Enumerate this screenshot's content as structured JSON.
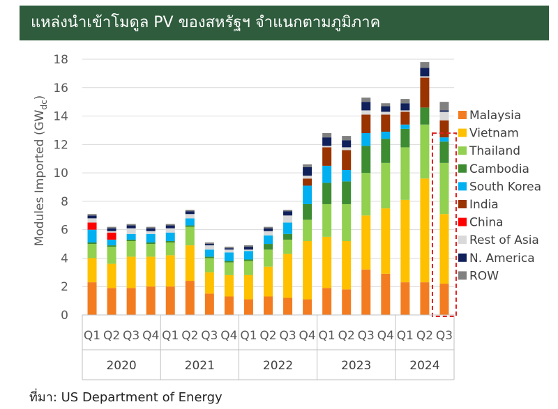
{
  "header": {
    "title": "แหล่งนำเข้าโมดูล PV ของสหรัฐฯ จำแนกตามภูมิภาค"
  },
  "footer": {
    "source": "ที่มา: US Department of Energy"
  },
  "chart_data": {
    "type": "bar",
    "stacked": true,
    "ylabel": "Modules Imported (GWdc)",
    "ylabel_main": "Modules Imported (GW",
    "ylabel_sub": "dc",
    "ylabel_close": ")",
    "ylim": [
      0,
      18
    ],
    "yticks": [
      0,
      2,
      4,
      6,
      8,
      10,
      12,
      14,
      16,
      18
    ],
    "grid": true,
    "legend_position": "right",
    "categories": [
      "Q1",
      "Q2",
      "Q3",
      "Q4",
      "Q1",
      "Q2",
      "Q3",
      "Q4",
      "Q1",
      "Q2",
      "Q3",
      "Q4",
      "Q1",
      "Q2",
      "Q3",
      "Q4",
      "Q1",
      "Q2",
      "Q3"
    ],
    "years": [
      {
        "label": "2020",
        "count": 4
      },
      {
        "label": "2021",
        "count": 4
      },
      {
        "label": "2022",
        "count": 4
      },
      {
        "label": "2023",
        "count": 4
      },
      {
        "label": "2024",
        "count": 3
      }
    ],
    "highlight_index": 18,
    "series": [
      {
        "name": "Malaysia",
        "color": "#f47c20",
        "values": [
          2.3,
          1.9,
          1.9,
          2.0,
          2.0,
          2.4,
          1.5,
          1.3,
          1.1,
          1.3,
          1.2,
          1.1,
          1.9,
          1.8,
          3.2,
          2.9,
          2.3,
          2.3,
          2.2
        ]
      },
      {
        "name": "Vietnam",
        "color": "#ffc000",
        "values": [
          1.7,
          1.7,
          2.2,
          2.1,
          2.2,
          2.5,
          1.5,
          1.5,
          1.7,
          2.1,
          3.1,
          4.1,
          3.6,
          3.4,
          3.8,
          4.6,
          5.8,
          7.3,
          4.9
        ]
      },
      {
        "name": "Thailand",
        "color": "#92d050",
        "values": [
          1.0,
          1.2,
          1.1,
          0.9,
          0.9,
          1.3,
          1.0,
          0.9,
          1.0,
          1.2,
          1.0,
          1.5,
          2.3,
          2.6,
          3.0,
          3.2,
          3.7,
          3.8,
          3.6
        ]
      },
      {
        "name": "Cambodia",
        "color": "#3d8c32",
        "values": [
          0.1,
          0.1,
          0.1,
          0.1,
          0.1,
          0.1,
          0.1,
          0.1,
          0.1,
          0.4,
          0.4,
          1.1,
          1.5,
          1.6,
          1.9,
          1.7,
          1.3,
          1.2,
          1.5
        ]
      },
      {
        "name": "South Korea",
        "color": "#00b0f0",
        "values": [
          0.9,
          0.4,
          0.4,
          0.6,
          0.6,
          0.5,
          0.5,
          0.6,
          0.6,
          0.6,
          0.8,
          1.3,
          1.2,
          0.8,
          0.9,
          0.5,
          0.3,
          0.0,
          0.3
        ]
      },
      {
        "name": "India",
        "color": "#993300",
        "values": [
          0.0,
          0.0,
          0.0,
          0.0,
          0.0,
          0.0,
          0.0,
          0.0,
          0.0,
          0.0,
          0.0,
          0.5,
          1.3,
          1.4,
          1.3,
          1.2,
          0.9,
          2.1,
          1.2
        ]
      },
      {
        "name": "China",
        "color": "#ff0000",
        "values": [
          0.5,
          0.5,
          0.0,
          0.0,
          0.0,
          0.0,
          0.0,
          0.0,
          0.0,
          0.0,
          0.0,
          0.0,
          0.0,
          0.0,
          0.0,
          0.0,
          0.0,
          0.0,
          0.0
        ]
      },
      {
        "name": "Rest of Asia",
        "color": "#d9d9d9",
        "values": [
          0.3,
          0.1,
          0.4,
          0.2,
          0.3,
          0.3,
          0.3,
          0.2,
          0.1,
          0.3,
          0.5,
          0.2,
          0.1,
          0.2,
          0.3,
          0.2,
          0.1,
          0.1,
          0.6
        ]
      },
      {
        "name": "N. America",
        "color": "#10205a",
        "values": [
          0.2,
          0.2,
          0.2,
          0.2,
          0.2,
          0.2,
          0.1,
          0.1,
          0.2,
          0.2,
          0.3,
          0.6,
          0.6,
          0.5,
          0.6,
          0.4,
          0.5,
          0.6,
          0.1
        ]
      },
      {
        "name": "ROW",
        "color": "#808080",
        "values": [
          0.1,
          0.1,
          0.1,
          0.1,
          0.1,
          0.1,
          0.1,
          0.1,
          0.1,
          0.1,
          0.1,
          0.2,
          0.3,
          0.3,
          0.3,
          0.2,
          0.3,
          0.4,
          0.6
        ]
      }
    ]
  }
}
